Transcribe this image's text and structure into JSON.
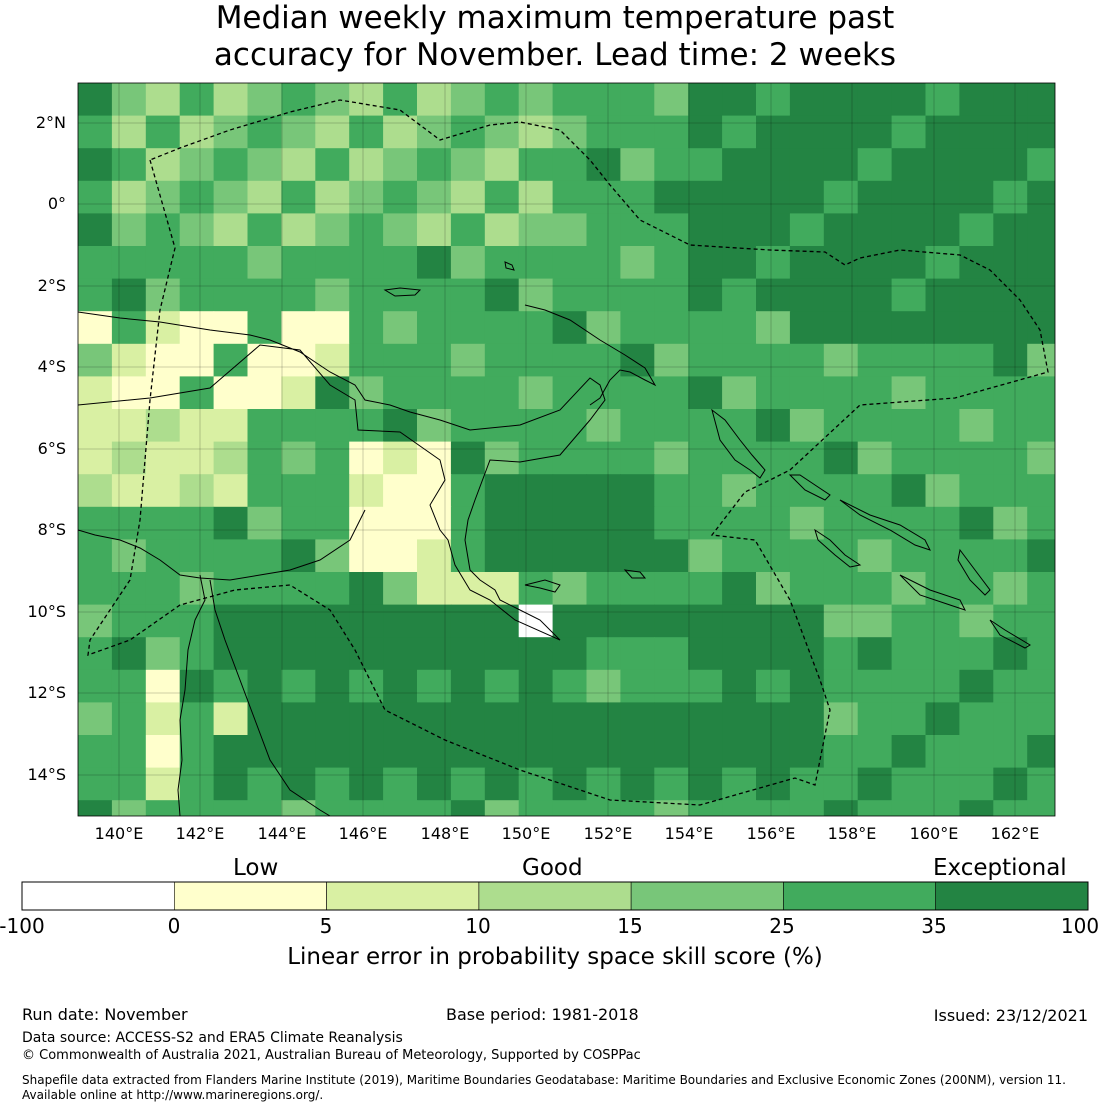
{
  "title": {
    "line1": "Median weekly maximum temperature past",
    "line2": "accuracy for November. Lead time: 2 weeks"
  },
  "map": {
    "lat_labels": [
      "2°N",
      "0°",
      "2°S",
      "4°S",
      "6°S",
      "8°S",
      "10°S",
      "12°S",
      "14°S"
    ],
    "lon_labels": [
      "140°E",
      "142°E",
      "144°E",
      "146°E",
      "148°E",
      "150°E",
      "152°E",
      "154°E",
      "156°E",
      "158°E",
      "160°E",
      "162°E"
    ],
    "extent": {
      "lon_min": 139.0,
      "lon_max": 163.0,
      "lat_min": -15.0,
      "lat_max": 3.0
    }
  },
  "legend": {
    "class_labels": [
      "Low",
      "Good",
      "Exceptional"
    ],
    "tick_labels": [
      "-100",
      "0",
      "5",
      "10",
      "15",
      "25",
      "35",
      "100"
    ],
    "colors": [
      "#ffffff",
      "#ffffcc",
      "#d9f0a3",
      "#addd8e",
      "#78c679",
      "#41ab5d",
      "#238443"
    ],
    "xlabel": "Linear error in probability space skill score (%)"
  },
  "footer": {
    "run_date": "Run date: November",
    "base_period": "Base period: 1981-2018",
    "issued": "Issued: 23/12/2021",
    "data_source": "Data source: ACCESS-S2 and ERA5 Climate Reanalysis",
    "copyright": "© Commonwealth of Australia 2021, Australian Bureau of Meteorology, Supported by COSPPac",
    "shapefile_line1": "Shapefile data extracted from Flanders Marine Institute (2019), Maritime Boundaries Geodatabase: Maritime Boundaries and Exclusive Economic Zones (200NM), version 11.",
    "shapefile_line2": "Available online at http://www.marineregions.org/."
  }
}
